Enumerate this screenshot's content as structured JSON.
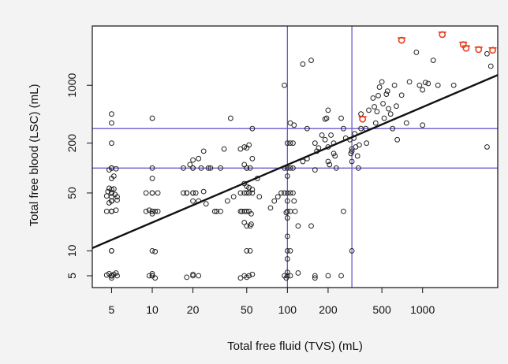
{
  "chart_data": {
    "type": "scatter",
    "title": "",
    "xlabel": "Total free fluid (TVS) (mL)",
    "ylabel": "Total free blood (LSC) (mL)",
    "x_scale": "log",
    "y_scale": "log",
    "xlim": [
      3.6,
      3600
    ],
    "ylim": [
      3.6,
      5200
    ],
    "x_ticks": [
      {
        "value": 5,
        "label": "5"
      },
      {
        "value": 10,
        "label": "10"
      },
      {
        "value": 20,
        "label": "20"
      },
      {
        "value": 50,
        "label": "50"
      },
      {
        "value": 100,
        "label": "100"
      },
      {
        "value": 200,
        "label": "200"
      },
      {
        "value": 500,
        "label": "500"
      },
      {
        "value": 1000,
        "label": "1000"
      }
    ],
    "y_ticks": [
      {
        "value": 5,
        "label": "5"
      },
      {
        "value": 10,
        "label": "10"
      },
      {
        "value": 50,
        "label": "50"
      },
      {
        "value": 200,
        "label": "200"
      },
      {
        "value": 1000,
        "label": "1000"
      }
    ],
    "reference_lines": {
      "vertical_x": [
        100,
        300
      ],
      "horizontal_y": [
        100,
        300
      ],
      "color": "#6a5acd"
    },
    "regression_line": {
      "color": "#111111",
      "x": [
        3.6,
        3600
      ],
      "y": [
        10.8,
        1330
      ]
    },
    "grid": false,
    "legend": "none",
    "series": [
      {
        "marker": "open-circle",
        "color": "#222222",
        "points": [
          [
            5,
            5
          ],
          [
            5,
            5
          ],
          [
            5,
            5
          ],
          [
            5,
            5
          ],
          [
            5,
            5
          ],
          [
            5,
            5
          ],
          [
            5,
            5
          ],
          [
            5,
            5
          ],
          [
            5,
            5
          ],
          [
            5,
            5
          ],
          [
            4.8,
            5.3
          ],
          [
            5.2,
            5.2
          ],
          [
            5.5,
            5
          ],
          [
            4.6,
            5.1
          ],
          [
            5,
            4.7
          ],
          [
            5.4,
            5.4
          ],
          [
            10,
            5
          ],
          [
            10,
            5
          ],
          [
            10,
            5.3
          ],
          [
            10.5,
            4.7
          ],
          [
            9.5,
            5
          ],
          [
            18,
            4.8
          ],
          [
            20,
            5
          ],
          [
            20,
            5.2
          ],
          [
            22,
            5
          ],
          [
            48,
            5
          ],
          [
            52,
            5
          ],
          [
            55,
            5.2
          ],
          [
            50,
            4.8
          ],
          [
            45,
            4.7
          ],
          [
            95,
            5
          ],
          [
            100,
            5
          ],
          [
            105,
            5
          ],
          [
            98,
            4.7
          ],
          [
            100,
            5.5
          ],
          [
            120,
            5.4
          ],
          [
            160,
            4.7
          ],
          [
            160,
            5
          ],
          [
            200,
            5
          ],
          [
            250,
            5
          ],
          [
            5,
            10
          ],
          [
            5,
            10
          ],
          [
            10,
            10
          ],
          [
            10.5,
            9.8
          ],
          [
            50,
            10
          ],
          [
            53,
            10
          ],
          [
            100,
            10
          ],
          [
            105,
            10
          ],
          [
            300,
            10
          ],
          [
            5,
            30
          ],
          [
            5,
            30
          ],
          [
            5,
            30
          ],
          [
            5,
            30
          ],
          [
            5,
            30
          ],
          [
            5,
            30
          ],
          [
            4.6,
            30
          ],
          [
            5.4,
            31
          ],
          [
            5,
            40
          ],
          [
            5,
            40
          ],
          [
            5,
            40
          ],
          [
            5,
            40
          ],
          [
            4.8,
            38
          ],
          [
            5.5,
            41
          ],
          [
            5,
            50
          ],
          [
            5,
            50
          ],
          [
            5,
            50
          ],
          [
            4.7,
            52
          ],
          [
            5.3,
            48
          ],
          [
            5,
            55
          ],
          [
            4.8,
            57
          ],
          [
            5.2,
            56
          ],
          [
            5,
            45
          ],
          [
            5.5,
            45
          ],
          [
            4.6,
            46
          ],
          [
            5,
            100
          ],
          [
            5,
            100
          ],
          [
            5,
            100
          ],
          [
            5,
            100
          ],
          [
            4.8,
            95
          ],
          [
            5.4,
            98
          ],
          [
            5,
            75
          ],
          [
            5.2,
            80
          ],
          [
            5,
            200
          ],
          [
            5,
            350
          ],
          [
            5,
            450
          ],
          [
            9,
            30
          ],
          [
            10,
            30
          ],
          [
            10,
            30
          ],
          [
            10,
            30
          ],
          [
            11,
            30
          ],
          [
            9,
            50
          ],
          [
            10,
            50
          ],
          [
            10,
            50
          ],
          [
            11,
            50
          ],
          [
            10,
            28
          ],
          [
            10.5,
            30
          ],
          [
            9.5,
            31
          ],
          [
            10,
            75
          ],
          [
            10,
            100
          ],
          [
            10,
            400
          ],
          [
            17,
            50
          ],
          [
            18,
            50
          ],
          [
            20,
            50
          ],
          [
            20,
            50
          ],
          [
            21,
            50
          ],
          [
            17,
            100
          ],
          [
            20,
            100
          ],
          [
            20,
            100
          ],
          [
            23,
            100
          ],
          [
            19,
            110
          ],
          [
            20,
            125
          ],
          [
            22,
            130
          ],
          [
            18,
            50
          ],
          [
            22,
            40
          ],
          [
            24,
            52
          ],
          [
            25,
            37
          ],
          [
            20,
            40
          ],
          [
            24,
            160
          ],
          [
            26,
            100
          ],
          [
            27,
            100
          ],
          [
            29,
            30
          ],
          [
            30,
            30
          ],
          [
            32,
            30
          ],
          [
            32,
            100
          ],
          [
            34,
            170
          ],
          [
            38,
            400
          ],
          [
            36,
            40
          ],
          [
            40,
            45
          ],
          [
            45,
            30
          ],
          [
            46,
            30
          ],
          [
            48,
            30
          ],
          [
            50,
            30
          ],
          [
            52,
            30
          ],
          [
            54,
            28
          ],
          [
            45,
            50
          ],
          [
            48,
            50
          ],
          [
            50,
            50
          ],
          [
            52,
            50
          ],
          [
            55,
            50
          ],
          [
            50,
            100
          ],
          [
            50,
            100
          ],
          [
            53,
            100
          ],
          [
            48,
            110
          ],
          [
            50,
            60
          ],
          [
            52,
            58
          ],
          [
            55,
            55
          ],
          [
            48,
            65
          ],
          [
            45,
            170
          ],
          [
            48,
            180
          ],
          [
            52,
            190
          ],
          [
            50,
            175
          ],
          [
            50,
            20
          ],
          [
            53,
            20
          ],
          [
            54,
            21
          ],
          [
            48,
            22
          ],
          [
            55,
            130
          ],
          [
            55,
            300
          ],
          [
            60,
            75
          ],
          [
            62,
            45
          ],
          [
            75,
            33
          ],
          [
            80,
            40
          ],
          [
            85,
            45
          ],
          [
            90,
            50
          ],
          [
            95,
            50
          ],
          [
            100,
            50
          ],
          [
            105,
            50
          ],
          [
            110,
            50
          ],
          [
            95,
            100
          ],
          [
            100,
            100
          ],
          [
            105,
            100
          ],
          [
            110,
            100
          ],
          [
            100,
            200
          ],
          [
            105,
            200
          ],
          [
            110,
            200
          ],
          [
            100,
            30
          ],
          [
            105,
            30
          ],
          [
            98,
            29
          ],
          [
            100,
            80
          ],
          [
            100,
            40
          ],
          [
            100,
            25
          ],
          [
            100,
            8
          ],
          [
            100,
            15
          ],
          [
            95,
            1000
          ],
          [
            105,
            350
          ],
          [
            112,
            330
          ],
          [
            112,
            40
          ],
          [
            114,
            30
          ],
          [
            120,
            20
          ],
          [
            130,
            120
          ],
          [
            140,
            130
          ],
          [
            140,
            300
          ],
          [
            150,
            2000
          ],
          [
            130,
            1800
          ],
          [
            150,
            20
          ],
          [
            160,
            95
          ],
          [
            160,
            200
          ],
          [
            165,
            160
          ],
          [
            170,
            175
          ],
          [
            180,
            250
          ],
          [
            190,
            390
          ],
          [
            195,
            400
          ],
          [
            200,
            500
          ],
          [
            200,
            180
          ],
          [
            190,
            220
          ],
          [
            200,
            120
          ],
          [
            205,
            110
          ],
          [
            210,
            250
          ],
          [
            220,
            200
          ],
          [
            220,
            150
          ],
          [
            225,
            140
          ],
          [
            230,
            100
          ],
          [
            250,
            400
          ],
          [
            260,
            30
          ],
          [
            260,
            300
          ],
          [
            270,
            230
          ],
          [
            290,
            220
          ],
          [
            295,
            150
          ],
          [
            300,
            120
          ],
          [
            300,
            160
          ],
          [
            300,
            170
          ],
          [
            310,
            230
          ],
          [
            315,
            260
          ],
          [
            320,
            180
          ],
          [
            330,
            140
          ],
          [
            335,
            100
          ],
          [
            340,
            190
          ],
          [
            350,
            300
          ],
          [
            350,
            450
          ],
          [
            380,
            300
          ],
          [
            385,
            200
          ],
          [
            400,
            500
          ],
          [
            430,
            700
          ],
          [
            440,
            550
          ],
          [
            450,
            350
          ],
          [
            460,
            480
          ],
          [
            470,
            750
          ],
          [
            480,
            950
          ],
          [
            500,
            1100
          ],
          [
            510,
            600
          ],
          [
            520,
            400
          ],
          [
            540,
            780
          ],
          [
            550,
            850
          ],
          [
            560,
            520
          ],
          [
            580,
            450
          ],
          [
            600,
            300
          ],
          [
            620,
            1000
          ],
          [
            640,
            560
          ],
          [
            650,
            220
          ],
          [
            700,
            760
          ],
          [
            760,
            350
          ],
          [
            800,
            1100
          ],
          [
            900,
            2500
          ],
          [
            950,
            1000
          ],
          [
            1000,
            880
          ],
          [
            1050,
            1080
          ],
          [
            1100,
            1050
          ],
          [
            1000,
            330
          ],
          [
            1300,
            1000
          ],
          [
            1200,
            2000
          ],
          [
            1700,
            1000
          ],
          [
            3000,
            180
          ],
          [
            3000,
            2400
          ],
          [
            3200,
            1700
          ]
        ]
      },
      {
        "marker": "open-circle-highlight",
        "color": "#e8401c",
        "points": [
          [
            360,
            390
          ],
          [
            700,
            3500
          ],
          [
            1400,
            4100
          ],
          [
            2000,
            3100
          ],
          [
            2100,
            2800
          ],
          [
            2600,
            2700
          ],
          [
            3300,
            2650
          ]
        ]
      }
    ]
  }
}
